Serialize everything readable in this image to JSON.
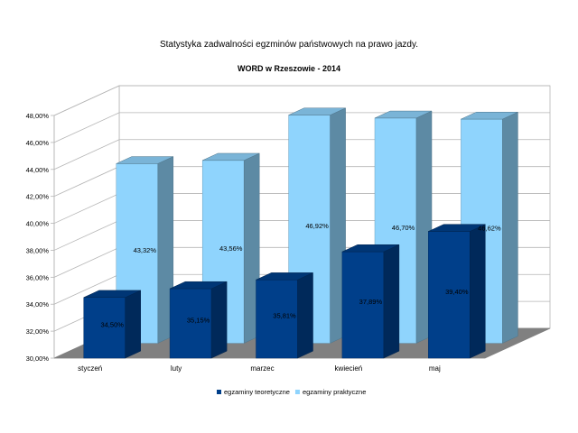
{
  "chart_data": {
    "type": "bar",
    "title": "Statystyka zadwalności egzminów państwowych na prawo jazdy.",
    "subtitle": "WORD w Rzeszowie - 2014",
    "categories": [
      "styczeń",
      "luty",
      "marzec",
      "kwiecień",
      "maj"
    ],
    "series": [
      {
        "name": "egzaminy teoretyczne",
        "color": "#003f8a",
        "values": [
          34.5,
          35.15,
          35.81,
          37.89,
          39.4
        ],
        "labels": [
          "34,50%",
          "35,15%",
          "35,81%",
          "37,89%",
          "39,40%"
        ]
      },
      {
        "name": "egzaminy praktyczne",
        "color": "#8fd4fd",
        "values": [
          43.32,
          43.56,
          46.92,
          46.7,
          46.62
        ],
        "labels": [
          "43,32%",
          "43,56%",
          "46,92%",
          "46,70%",
          "46,62%"
        ]
      }
    ],
    "ylim": [
      30,
      48
    ],
    "yticks": [
      30,
      32,
      34,
      36,
      38,
      40,
      42,
      44,
      46,
      48
    ],
    "ytick_labels": [
      "30,00%",
      "32,00%",
      "34,00%",
      "36,00%",
      "38,00%",
      "40,00%",
      "42,00%",
      "44,00%",
      "46,00%",
      "48,00%"
    ],
    "grid": true,
    "legend_position": "bottom",
    "three_d": true
  }
}
